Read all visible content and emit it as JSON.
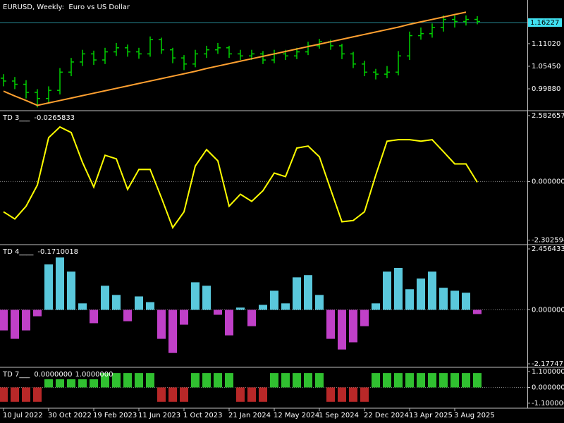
{
  "chart_data": [
    {
      "type": "ohlc",
      "title": "EURUSD, Weekly:  Euro vs US Dollar",
      "color": "#00d000",
      "open": [
        1.025,
        1.018,
        1.01,
        0.99,
        0.975,
        0.995,
        1.04,
        1.065,
        1.085,
        1.07,
        1.09,
        1.1,
        1.09,
        1.085,
        1.12,
        1.095,
        1.075,
        1.06,
        1.085,
        1.095,
        1.1,
        1.085,
        1.08,
        1.085,
        1.07,
        1.085,
        1.08,
        1.09,
        1.105,
        1.115,
        1.105,
        1.085,
        1.06,
        1.04,
        1.035,
        1.04,
        1.08,
        1.13,
        1.135,
        1.15,
        1.17,
        1.165,
        1.17
      ],
      "high": [
        1.035,
        1.028,
        1.02,
        0.998,
        1.005,
        1.05,
        1.075,
        1.095,
        1.093,
        1.1,
        1.112,
        1.108,
        1.1,
        1.128,
        1.125,
        1.1,
        1.082,
        1.095,
        1.105,
        1.112,
        1.105,
        1.095,
        1.095,
        1.092,
        1.095,
        1.095,
        1.1,
        1.115,
        1.122,
        1.12,
        1.11,
        1.09,
        1.068,
        1.048,
        1.055,
        1.092,
        1.14,
        1.15,
        1.16,
        1.18,
        1.18,
        1.18,
        1.178
      ],
      "low": [
        1.005,
        0.998,
        0.975,
        0.953,
        0.963,
        0.985,
        1.03,
        1.055,
        1.058,
        1.06,
        1.08,
        1.078,
        1.073,
        1.078,
        1.085,
        1.062,
        1.045,
        1.052,
        1.075,
        1.085,
        1.075,
        1.07,
        1.07,
        1.06,
        1.062,
        1.07,
        1.072,
        1.082,
        1.098,
        1.095,
        1.072,
        1.05,
        1.03,
        1.022,
        1.025,
        1.032,
        1.07,
        1.12,
        1.125,
        1.14,
        1.15,
        1.155,
        1.158
      ],
      "close": [
        1.018,
        1.01,
        0.99,
        0.975,
        0.995,
        1.04,
        1.065,
        1.085,
        1.07,
        1.09,
        1.1,
        1.09,
        1.085,
        1.12,
        1.095,
        1.075,
        1.06,
        1.085,
        1.095,
        1.1,
        1.085,
        1.08,
        1.085,
        1.07,
        1.085,
        1.08,
        1.09,
        1.105,
        1.115,
        1.105,
        1.085,
        1.06,
        1.04,
        1.035,
        1.04,
        1.08,
        1.13,
        1.135,
        1.15,
        1.17,
        1.165,
        1.17,
        1.165
      ],
      "trend_line": {
        "color": "#ffa030",
        "values": [
          0.993,
          0.981,
          0.97,
          0.958,
          0.964,
          0.97,
          0.976,
          0.982,
          0.988,
          0.994,
          1.0,
          1.006,
          1.012,
          1.018,
          1.024,
          1.03,
          1.036,
          1.042,
          1.049,
          1.055,
          1.061,
          1.067,
          1.073,
          1.079,
          1.085,
          1.091,
          1.097,
          1.103,
          1.109,
          1.115,
          1.121,
          1.127,
          1.133,
          1.139,
          1.145,
          1.151,
          1.158,
          1.164,
          1.17,
          1.176,
          1.182,
          1.188,
          null
        ]
      },
      "current_price": {
        "value": 1.16227,
        "color": "#40e0f0"
      },
      "ylim": [
        0.9466,
        1.2162
      ],
      "yticks": [
        {
          "value": 0.9988,
          "label": "0.99880"
        },
        {
          "value": 1.0545,
          "label": "1.05450"
        },
        {
          "value": 1.1102,
          "label": "1.11020"
        }
      ]
    },
    {
      "type": "line",
      "title": "TD 3___",
      "current_value": -0.0265833,
      "color": "#ffff00",
      "zero_line": true,
      "values": [
        -1.19,
        -1.47,
        -0.97,
        -0.14,
        1.72,
        2.14,
        1.92,
        0.75,
        -0.22,
        1.03,
        0.89,
        -0.31,
        0.47,
        0.47,
        -0.64,
        -1.81,
        -1.19,
        0.61,
        1.25,
        0.81,
        -0.97,
        -0.5,
        -0.78,
        -0.36,
        0.33,
        0.19,
        1.31,
        1.39,
        0.97,
        -0.31,
        -1.58,
        -1.53,
        -1.19,
        0.25,
        1.58,
        1.64,
        1.64,
        1.58,
        1.64,
        1.17,
        0.69,
        0.69,
        -0.03
      ],
      "ylim": [
        -2.45,
        2.75
      ],
      "yticks": [
        -2.3025947,
        {
          "value": 0,
          "label": "0.0000000"
        },
        2.5826579
      ]
    },
    {
      "type": "bar",
      "title": "TD 4____",
      "current_value": -0.1710018,
      "positive_color": "#5ac8dc",
      "negative_color": "#c040c8",
      "zero_line": true,
      "values": [
        -0.83,
        -1.17,
        -0.83,
        -0.26,
        1.83,
        2.11,
        1.54,
        0.26,
        -0.54,
        0.97,
        0.6,
        -0.46,
        0.54,
        0.31,
        -1.17,
        -1.74,
        -0.6,
        1.11,
        0.97,
        -0.2,
        -1.03,
        0.09,
        -0.66,
        0.2,
        0.77,
        0.26,
        1.31,
        1.4,
        0.6,
        -1.17,
        -1.6,
        -1.31,
        -0.66,
        0.26,
        1.54,
        1.69,
        0.83,
        1.26,
        1.54,
        0.89,
        0.77,
        0.69,
        -0.17
      ],
      "ylim": [
        -2.29,
        2.6
      ],
      "yticks": [
        -2.1774711,
        {
          "value": 0,
          "label": "0.0000000"
        },
        {
          "value": 2.456433,
          "label": "2.4564330"
        }
      ]
    },
    {
      "type": "bar",
      "title": "TD 7___",
      "current_values": [
        {
          "value": 0,
          "label": "0.0000000"
        },
        {
          "value": 1,
          "label": "1.0000000"
        }
      ],
      "positive_color": "#30c030",
      "negative_color": "#b82828",
      "zero_line": true,
      "values": [
        -1,
        -1,
        -1,
        -1,
        1,
        1,
        1,
        1,
        1,
        1,
        1,
        1,
        1,
        1,
        -1,
        -1,
        -1,
        1,
        1,
        1,
        1,
        -1,
        -1,
        -1,
        1,
        1,
        1,
        1,
        1,
        -1,
        -1,
        -1,
        -1,
        1,
        1,
        1,
        1,
        1,
        1,
        1,
        1,
        1,
        1
      ],
      "ylim": [
        -1.4,
        1.35
      ],
      "yticks": [
        {
          "value": -1.1,
          "label": "-1.1000000"
        },
        {
          "value": 0,
          "label": "0.0000000"
        },
        {
          "value": 1.1,
          "label": "1.1000000"
        }
      ],
      "categories": [
        "10 Jul 2022",
        null,
        null,
        null,
        "30 Oct 2022",
        null,
        null,
        null,
        "19 Feb 2023",
        null,
        null,
        null,
        "11 Jun 2023",
        null,
        null,
        null,
        "1 Oct 2023",
        null,
        null,
        null,
        "21 Jan 2024",
        null,
        null,
        null,
        "12 May 2024",
        null,
        null,
        null,
        "1 Sep 2024",
        null,
        null,
        null,
        "22 Dec 2024",
        null,
        null,
        null,
        "13 Apr 2025",
        null,
        null,
        null,
        "3 Aug 2025",
        null,
        null
      ]
    }
  ]
}
